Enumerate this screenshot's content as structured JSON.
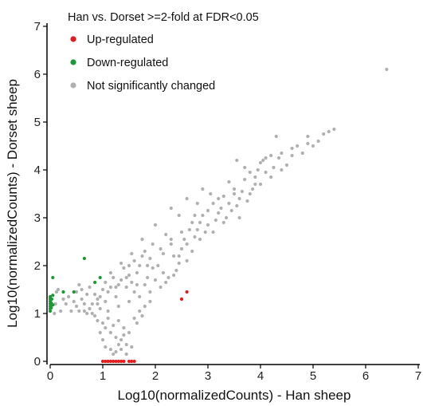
{
  "chart_data": {
    "type": "scatter",
    "title": "Han vs. Dorset >=2-fold at FDR<0.05",
    "xlabel": "Log10(normalizedCounts) - Han sheep",
    "ylabel": "Log10(normalizedCounts) - Dorset sheep",
    "xlim": [
      0,
      7
    ],
    "ylim": [
      0,
      7
    ],
    "xticks": [
      "0",
      "1",
      "2",
      "3",
      "4",
      "5",
      "6",
      "7"
    ],
    "yticks": [
      "0",
      "1",
      "2",
      "3",
      "4",
      "5",
      "6",
      "7"
    ],
    "grid": false,
    "legend_position": "top-left",
    "series": [
      {
        "name": "Up-regulated",
        "color": "#e41a1c",
        "points": [
          [
            2.5,
            1.3
          ],
          [
            2.6,
            1.45
          ],
          [
            1.0,
            0.0
          ],
          [
            1.05,
            0.0
          ],
          [
            1.1,
            0.0
          ],
          [
            1.15,
            0.0
          ],
          [
            1.2,
            0.0
          ],
          [
            1.25,
            0.0
          ],
          [
            1.3,
            0.0
          ],
          [
            1.35,
            0.0
          ],
          [
            1.4,
            0.0
          ],
          [
            1.5,
            0.0
          ],
          [
            1.55,
            0.0
          ],
          [
            1.6,
            0.0
          ]
        ]
      },
      {
        "name": "Down-regulated",
        "color": "#1a9a34",
        "points": [
          [
            0.0,
            1.05
          ],
          [
            0.0,
            1.1
          ],
          [
            0.0,
            1.15
          ],
          [
            0.0,
            1.2
          ],
          [
            0.0,
            1.25
          ],
          [
            0.0,
            1.3
          ],
          [
            0.0,
            1.35
          ],
          [
            0.02,
            1.12
          ],
          [
            0.02,
            1.22
          ],
          [
            0.03,
            1.3
          ],
          [
            0.05,
            1.18
          ],
          [
            0.05,
            1.38
          ],
          [
            0.05,
            1.75
          ],
          [
            0.25,
            1.45
          ],
          [
            0.45,
            1.45
          ],
          [
            0.65,
            2.15
          ],
          [
            0.85,
            1.65
          ],
          [
            0.95,
            1.75
          ]
        ]
      },
      {
        "name": "Not significantly changed",
        "color": "#b0b0b0",
        "points": [
          [
            6.4,
            6.1
          ],
          [
            5.4,
            4.85
          ],
          [
            5.3,
            4.8
          ],
          [
            5.1,
            4.6
          ],
          [
            4.9,
            4.55
          ],
          [
            4.6,
            4.45
          ],
          [
            4.4,
            4.35
          ],
          [
            4.2,
            4.3
          ],
          [
            4.05,
            4.2
          ],
          [
            3.95,
            4.0
          ],
          [
            3.8,
            3.95
          ],
          [
            3.7,
            3.8
          ],
          [
            3.5,
            3.6
          ],
          [
            3.3,
            3.45
          ],
          [
            3.1,
            3.3
          ],
          [
            2.9,
            3.05
          ],
          [
            2.7,
            2.9
          ],
          [
            2.5,
            2.7
          ],
          [
            2.3,
            2.55
          ],
          [
            2.1,
            2.35
          ],
          [
            1.9,
            2.15
          ],
          [
            1.7,
            2.0
          ],
          [
            1.5,
            1.8
          ],
          [
            1.3,
            1.6
          ],
          [
            1.1,
            1.45
          ],
          [
            4.3,
            4.7
          ],
          [
            4.5,
            4.1
          ],
          [
            4.1,
            3.95
          ],
          [
            4.0,
            4.15
          ],
          [
            3.9,
            3.7
          ],
          [
            3.6,
            3.4
          ],
          [
            3.4,
            3.75
          ],
          [
            3.2,
            3.1
          ],
          [
            3.05,
            3.5
          ],
          [
            2.95,
            2.7
          ],
          [
            2.8,
            3.3
          ],
          [
            2.6,
            2.45
          ],
          [
            2.75,
            2.6
          ],
          [
            2.45,
            3.05
          ],
          [
            2.35,
            2.2
          ],
          [
            2.2,
            2.65
          ],
          [
            2.05,
            2.0
          ],
          [
            2.15,
            1.85
          ],
          [
            1.95,
            2.45
          ],
          [
            1.85,
            1.75
          ],
          [
            1.8,
            2.3
          ],
          [
            1.65,
            1.6
          ],
          [
            1.6,
            2.1
          ],
          [
            1.45,
            1.55
          ],
          [
            1.4,
            1.95
          ],
          [
            1.25,
            1.35
          ],
          [
            1.2,
            1.75
          ],
          [
            1.05,
            1.25
          ],
          [
            1.0,
            1.5
          ],
          [
            0.95,
            1.1
          ],
          [
            2.6,
            2.1
          ],
          [
            2.4,
            1.9
          ],
          [
            2.25,
            1.75
          ],
          [
            2.5,
            2.35
          ],
          [
            2.85,
            2.55
          ],
          [
            3.0,
            2.85
          ],
          [
            3.15,
            2.95
          ],
          [
            3.25,
            3.2
          ],
          [
            3.35,
            3.0
          ],
          [
            3.55,
            3.25
          ],
          [
            3.65,
            3.55
          ],
          [
            3.75,
            3.35
          ],
          [
            3.85,
            3.6
          ],
          [
            3.45,
            3.15
          ],
          [
            3.7,
            4.05
          ],
          [
            4.25,
            4.05
          ],
          [
            4.35,
            4.25
          ],
          [
            4.7,
            4.5
          ],
          [
            4.8,
            4.35
          ],
          [
            3.55,
            4.2
          ],
          [
            2.0,
            2.85
          ],
          [
            1.75,
            2.55
          ],
          [
            1.55,
            2.25
          ],
          [
            1.35,
            2.05
          ],
          [
            1.15,
            1.85
          ],
          [
            2.3,
            3.2
          ],
          [
            2.6,
            3.4
          ],
          [
            2.9,
            3.6
          ],
          [
            2.1,
            1.55
          ],
          [
            1.9,
            1.45
          ],
          [
            1.7,
            1.35
          ],
          [
            1.5,
            1.25
          ],
          [
            1.6,
            1.45
          ],
          [
            1.8,
            1.6
          ],
          [
            2.0,
            1.7
          ],
          [
            1.3,
            1.15
          ],
          [
            1.1,
            1.05
          ],
          [
            0.9,
            1.3
          ],
          [
            0.8,
            1.2
          ],
          [
            0.7,
            1.4
          ],
          [
            0.6,
            1.3
          ],
          [
            0.5,
            1.15
          ],
          [
            0.45,
            1.25
          ],
          [
            0.55,
            1.6
          ],
          [
            0.75,
            1.55
          ],
          [
            0.4,
            1.05
          ],
          [
            0.3,
            1.2
          ],
          [
            0.25,
            1.3
          ],
          [
            0.2,
            1.05
          ],
          [
            0.15,
            1.5
          ],
          [
            0.1,
            1.2
          ],
          [
            0.08,
            1.0
          ],
          [
            0.12,
            1.45
          ],
          [
            0.35,
            1.35
          ],
          [
            0.65,
            1.05
          ],
          [
            0.85,
            0.95
          ],
          [
            0.9,
            0.85
          ],
          [
            1.0,
            0.8
          ],
          [
            1.05,
            0.7
          ],
          [
            1.1,
            0.9
          ],
          [
            1.15,
            0.6
          ],
          [
            1.2,
            0.75
          ],
          [
            1.25,
            0.5
          ],
          [
            1.3,
            0.85
          ],
          [
            1.35,
            0.45
          ],
          [
            1.4,
            0.7
          ],
          [
            1.45,
            0.35
          ],
          [
            1.5,
            0.6
          ],
          [
            1.55,
            0.3
          ],
          [
            1.6,
            0.9
          ],
          [
            0.95,
            0.6
          ],
          [
            1.0,
            0.45
          ],
          [
            1.05,
            0.3
          ],
          [
            1.15,
            0.25
          ],
          [
            1.25,
            0.2
          ],
          [
            1.35,
            0.25
          ],
          [
            1.45,
            0.15
          ],
          [
            1.2,
            0.15
          ],
          [
            1.3,
            0.35
          ],
          [
            1.4,
            0.55
          ],
          [
            1.7,
            1.05
          ],
          [
            1.8,
            1.15
          ],
          [
            1.9,
            1.25
          ],
          [
            1.75,
            0.95
          ],
          [
            1.65,
            0.8
          ],
          [
            2.2,
            1.65
          ],
          [
            2.35,
            1.8
          ],
          [
            2.45,
            2.05
          ],
          [
            2.55,
            2.55
          ],
          [
            2.7,
            2.3
          ],
          [
            2.8,
            2.75
          ],
          [
            3.0,
            3.15
          ],
          [
            3.1,
            2.7
          ],
          [
            3.2,
            3.4
          ],
          [
            3.3,
            2.9
          ],
          [
            3.4,
            3.3
          ],
          [
            3.5,
            3.5
          ],
          [
            3.6,
            3.0
          ],
          [
            3.8,
            3.5
          ],
          [
            3.9,
            3.85
          ],
          [
            4.0,
            3.7
          ],
          [
            4.1,
            4.25
          ],
          [
            4.2,
            3.85
          ],
          [
            4.4,
            4.0
          ],
          [
            4.6,
            4.3
          ],
          [
            4.9,
            4.7
          ],
          [
            5.0,
            4.5
          ],
          [
            5.2,
            4.75
          ],
          [
            1.95,
            1.95
          ],
          [
            2.15,
            2.25
          ],
          [
            2.3,
            2.45
          ],
          [
            2.45,
            2.2
          ],
          [
            2.65,
            2.75
          ],
          [
            2.75,
            3.05
          ],
          [
            2.85,
            2.9
          ],
          [
            1.45,
            1.75
          ],
          [
            1.55,
            1.65
          ],
          [
            1.65,
            1.85
          ],
          [
            1.75,
            2.2
          ],
          [
            1.85,
            2.0
          ],
          [
            1.05,
            1.65
          ],
          [
            1.15,
            1.55
          ],
          [
            1.25,
            1.55
          ],
          [
            1.35,
            1.7
          ],
          [
            1.5,
            2.0
          ],
          [
            0.55,
            1.05
          ],
          [
            0.65,
            1.2
          ],
          [
            0.75,
            1.1
          ],
          [
            0.85,
            1.4
          ],
          [
            0.95,
            1.35
          ],
          [
            0.5,
            1.45
          ],
          [
            0.6,
            1.5
          ],
          [
            0.7,
            1.0
          ],
          [
            0.8,
            1.0
          ],
          [
            0.9,
            1.2
          ]
        ]
      }
    ]
  }
}
